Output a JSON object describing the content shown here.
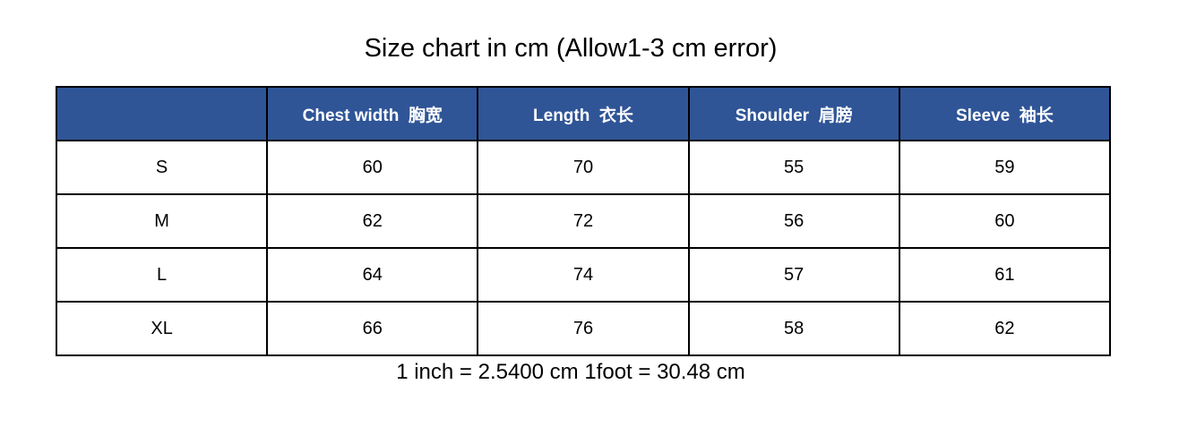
{
  "title": "Size chart in cm (Allow1-3 cm error)",
  "footer_note": "1 inch = 2.5400 cm 1foot = 30.48 cm",
  "table": {
    "columns": [
      "",
      "Chest width  胸宽",
      "Length  衣长",
      "Shoulder  肩膀",
      "Sleeve  袖长"
    ],
    "rows": [
      {
        "size": "S",
        "values": [
          "60",
          "70",
          "55",
          "59"
        ]
      },
      {
        "size": "M",
        "values": [
          "62",
          "72",
          "56",
          "60"
        ]
      },
      {
        "size": "L",
        "values": [
          "64",
          "74",
          "57",
          "61"
        ]
      },
      {
        "size": "XL",
        "values": [
          "66",
          "76",
          "58",
          "62"
        ]
      }
    ]
  },
  "colors": {
    "background": "#FFFFFF",
    "header_bg": "#2F5597",
    "header_text": "#FFFFFF",
    "border": "#000000",
    "body_text": "#000000"
  },
  "chart_data": {
    "type": "table",
    "title": "Size chart in cm (Allow1-3 cm error)",
    "units": "cm",
    "columns": [
      "",
      "Chest width 胸宽",
      "Length 衣长",
      "Shoulder 肩膀",
      "Sleeve 袖长"
    ],
    "rows": [
      [
        "S",
        60,
        70,
        55,
        59
      ],
      [
        "M",
        62,
        72,
        56,
        60
      ],
      [
        "L",
        64,
        74,
        57,
        61
      ],
      [
        "XL",
        66,
        76,
        58,
        62
      ]
    ],
    "note": "1 inch = 2.5400 cm 1foot = 30.48 cm"
  }
}
